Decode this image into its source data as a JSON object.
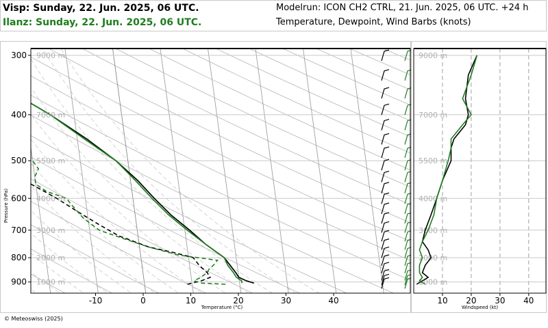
{
  "header": {
    "station1": "Visp: Sunday, 22. Jun. 2025, 06 UTC.",
    "station2": "Ilanz: Sunday, 22. Jun. 2025, 06 UTC.",
    "modelrun": "Modelrun: ICON CH2 CTRL, 21. Jun. 2025, 06 UTC. +24 h",
    "subtitle": "Temperature, Dewpoint, Wind Barbs (knots)"
  },
  "footer": {
    "copyright": "© Meteoswiss (2025)"
  },
  "colors": {
    "station1": "#000000",
    "station2": "#1e7d1e"
  },
  "chart_data": [
    {
      "type": "skew-t",
      "title": "",
      "xlabel": "Temperature (°C)",
      "ylabel": "Pressure (hPa)",
      "xticks": [
        -10,
        0,
        10,
        20,
        30,
        40
      ],
      "xlim": [
        -20,
        46
      ],
      "ylim": [
        950,
        290
      ],
      "yticks": [
        300,
        400,
        500,
        600,
        700,
        800,
        900
      ],
      "height_labels": [
        "9000 m",
        "7000 m",
        "5500 m",
        "4000 m",
        "3000 m",
        "2000 m",
        "1000 m"
      ],
      "series": [
        {
          "name": "Visp",
          "kind": "temperature",
          "p": [
            905,
            895,
            880,
            860,
            830,
            800,
            750,
            700,
            650,
            600,
            550,
            500,
            450,
            400,
            350,
            300
          ],
          "v": [
            23,
            21.5,
            20,
            19.5,
            18.5,
            17.5,
            14,
            11,
            7.5,
            4.5,
            1.5,
            -2.5,
            -8,
            -15,
            -24,
            -34
          ]
        },
        {
          "name": "Visp",
          "kind": "dewpoint",
          "p": [
            910,
            895,
            880,
            860,
            830,
            800,
            780,
            760,
            720,
            680,
            640,
            600,
            560,
            540,
            520,
            500,
            470,
            440,
            400,
            360,
            330,
            300
          ],
          "v": [
            9,
            12,
            14,
            13.5,
            12,
            11,
            7,
            2,
            -4,
            -8,
            -12,
            -16,
            -21,
            -23,
            -22,
            -23,
            -25,
            -28,
            -31,
            -36,
            -39,
            -42
          ]
        },
        {
          "name": "Ilanz",
          "kind": "temperature",
          "p": [
            905,
            895,
            880,
            860,
            830,
            800,
            750,
            700,
            650,
            600,
            550,
            500,
            450,
            400,
            350,
            300
          ],
          "v": [
            20.5,
            20.5,
            19.5,
            19,
            18,
            17.5,
            14,
            10.5,
            7,
            4,
            1,
            -2.5,
            -8.5,
            -15,
            -24,
            -34
          ]
        },
        {
          "name": "Ilanz",
          "kind": "dewpoint",
          "p": [
            910,
            905,
            895,
            880,
            860,
            845,
            830,
            810,
            790,
            760,
            730,
            700,
            660,
            620,
            600,
            580,
            560,
            540,
            520,
            500,
            470,
            440,
            400,
            360,
            330,
            300
          ],
          "v": [
            17,
            12,
            10.5,
            12,
            13.5,
            14,
            15,
            16,
            8,
            2,
            -3,
            -8,
            -11,
            -13,
            -14,
            -18,
            -20,
            -20,
            -19,
            -20,
            -22,
            -25,
            -23,
            -27,
            -29,
            -33
          ]
        }
      ]
    },
    {
      "type": "line",
      "title": "",
      "xlabel": "Windspeed (kt)",
      "xticks": [
        10,
        20,
        30,
        40
      ],
      "xlim": [
        0,
        46
      ],
      "series": [
        {
          "name": "Visp",
          "p": [
            910,
            895,
            880,
            860,
            830,
            800,
            770,
            740,
            700,
            650,
            600,
            550,
            500,
            470,
            450,
            420,
            400,
            370,
            330,
            300
          ],
          "v": [
            1,
            3,
            5,
            3,
            4,
            6,
            5,
            3,
            4,
            6,
            8,
            10,
            13,
            13,
            14,
            18,
            19,
            18,
            19,
            22
          ]
        },
        {
          "name": "Ilanz",
          "p": [
            910,
            895,
            880,
            860,
            830,
            800,
            770,
            740,
            700,
            650,
            600,
            550,
            500,
            470,
            450,
            420,
            400,
            370,
            330,
            300
          ],
          "v": [
            4,
            2,
            3,
            2,
            2,
            3,
            2,
            3,
            5,
            7,
            8,
            10,
            12,
            13,
            13,
            17,
            20,
            17,
            20,
            22
          ]
        }
      ]
    }
  ]
}
